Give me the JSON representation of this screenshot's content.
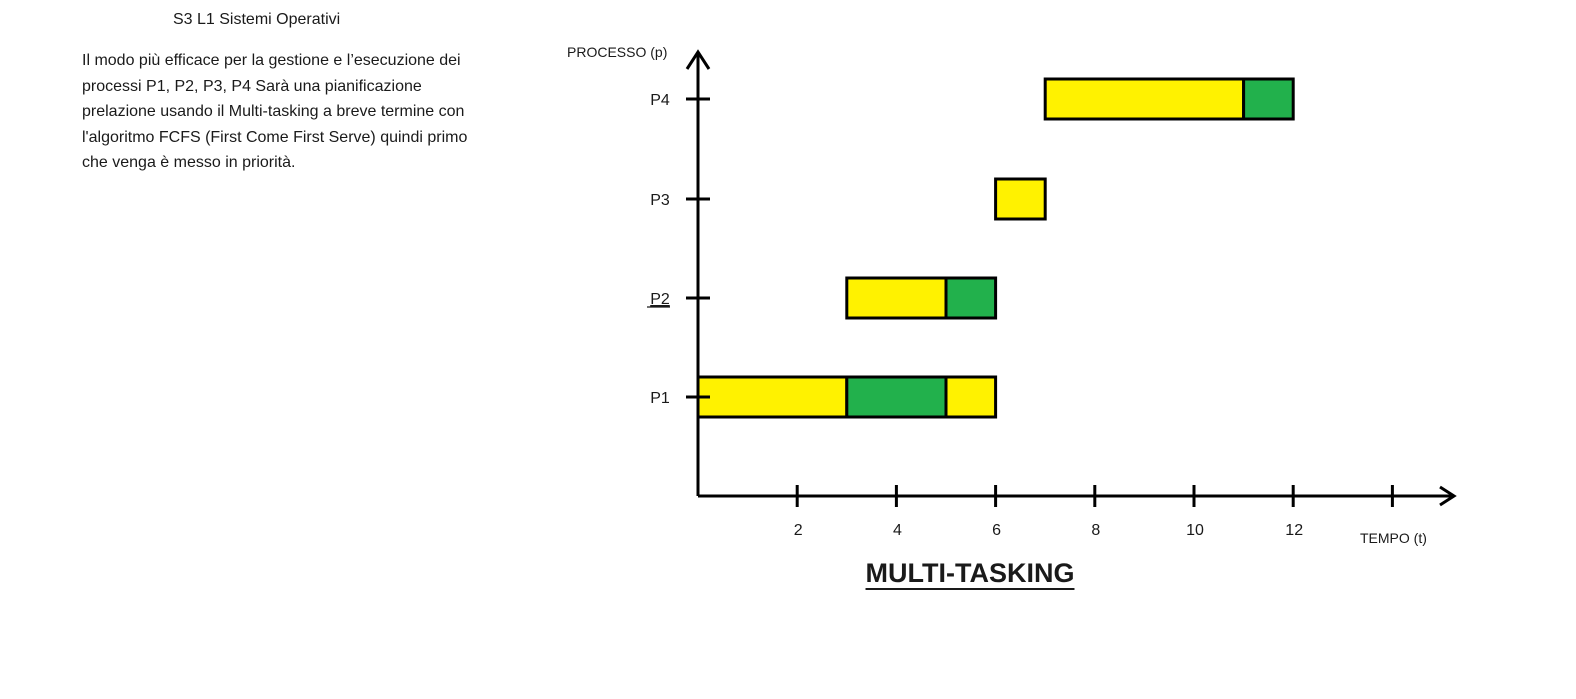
{
  "document": {
    "title": "S3 L1 Sistemi Operativi",
    "paragraph_lines": [
      " Il modo più efficace per la gestione e l’esecuzione dei",
      "processi P1, P2, P3, P4 Sarà una pianificazione",
      "prelazione usando il Multi-tasking a breve termine con",
      "l'algoritmo FCFS (First Come First Serve) quindi primo",
      "che venga è messo in priorità."
    ]
  },
  "chart_data": {
    "type": "gantt",
    "title": "MULTI-TASKING",
    "ylabel": "PROCESSO (p)",
    "xlabel": "TEMPO (t)",
    "x_ticks": [
      2,
      4,
      6,
      8,
      10,
      12,
      14
    ],
    "x_tick_labels": [
      "2",
      "4",
      "6",
      "8",
      "10",
      "12",
      ""
    ],
    "xlim": [
      0,
      15
    ],
    "grid": false,
    "legend": "none",
    "colors": {
      "yellow": "#FFF200",
      "green": "#22B14C",
      "outline": "#000000"
    },
    "processes": [
      {
        "name": "P1",
        "segments": [
          {
            "start": 0,
            "end": 3,
            "color": "yellow"
          },
          {
            "start": 3,
            "end": 5,
            "color": "green"
          },
          {
            "start": 5,
            "end": 6,
            "color": "yellow"
          }
        ]
      },
      {
        "name": "P2",
        "underline": true,
        "segments": [
          {
            "start": 3,
            "end": 5,
            "color": "yellow"
          },
          {
            "start": 5,
            "end": 6,
            "color": "green"
          }
        ]
      },
      {
        "name": "P3",
        "segments": [
          {
            "start": 6,
            "end": 7,
            "color": "yellow"
          }
        ]
      },
      {
        "name": "P4",
        "segments": [
          {
            "start": 7,
            "end": 11,
            "color": "yellow"
          },
          {
            "start": 11,
            "end": 12,
            "color": "green"
          }
        ]
      }
    ]
  }
}
